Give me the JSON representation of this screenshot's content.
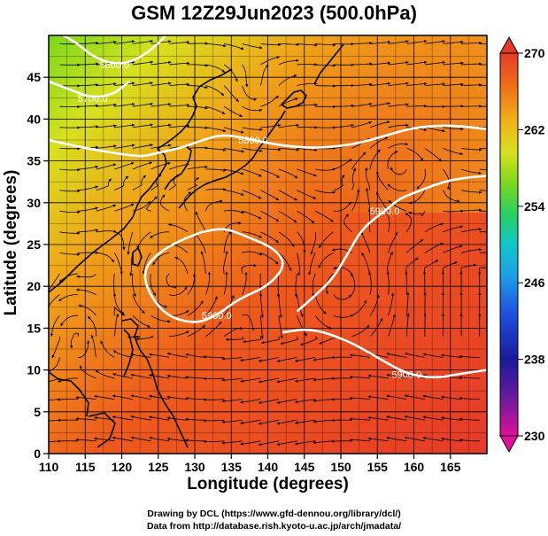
{
  "chart_data": {
    "type": "heatmap",
    "title": "GSM 12Z29Jun2023 (500.0hPa)",
    "xlabel": "Longitude (degrees)",
    "ylabel": "Latitude  (degrees)",
    "xlim": [
      110,
      170
    ],
    "ylim": [
      0,
      50
    ],
    "x_ticks": [
      "110",
      "115",
      "120",
      "125",
      "130",
      "135",
      "140",
      "145",
      "150",
      "155",
      "160",
      "165"
    ],
    "y_ticks": [
      "0",
      "5",
      "10",
      "15",
      "20",
      "25",
      "30",
      "35",
      "40",
      "45"
    ],
    "colorbar": {
      "min": 230,
      "max": 270,
      "tick_labels": [
        "270",
        "262",
        "254",
        "246",
        "238",
        "230"
      ],
      "colors": [
        "#e0109a",
        "#1a1a9c",
        "#1e3cd8",
        "#1e90e6",
        "#10c8c8",
        "#28d060",
        "#7ad81e",
        "#d8e01e",
        "#f0b418",
        "#f07018",
        "#e63a28"
      ]
    },
    "grid": true,
    "overlay": "streamlines",
    "contours": [
      {
        "label": "5800.0",
        "points": [
          [
            110,
            37.5
          ],
          [
            115,
            36.5
          ],
          [
            120,
            35.8
          ],
          [
            123,
            35.5
          ],
          [
            125,
            36.0
          ],
          [
            128,
            36.5
          ],
          [
            131,
            37.5
          ],
          [
            134,
            38.2
          ],
          [
            138,
            37.5
          ],
          [
            142,
            36.8
          ],
          [
            147,
            36.5
          ],
          [
            152,
            37.0
          ],
          [
            156,
            38.0
          ],
          [
            160,
            39.0
          ],
          [
            165,
            39.3
          ],
          [
            170,
            38.8
          ]
        ]
      },
      {
        "label": "5900.0",
        "points": [
          [
            131,
            26.5
          ],
          [
            128,
            25.5
          ],
          [
            125,
            24.0
          ],
          [
            123,
            22.0
          ],
          [
            123.5,
            19.5
          ],
          [
            126,
            16.5
          ],
          [
            130,
            15.5
          ],
          [
            133,
            16.5
          ],
          [
            136,
            18.5
          ],
          [
            140,
            20.0
          ],
          [
            142.5,
            22.5
          ],
          [
            141,
            24.5
          ],
          [
            137,
            26.0
          ],
          [
            134,
            27.0
          ],
          [
            131,
            26.5
          ]
        ]
      },
      {
        "label": "5900.0",
        "points": [
          [
            142,
            14.5
          ],
          [
            146,
            15.0
          ],
          [
            151,
            13.5
          ],
          [
            155,
            11.5
          ],
          [
            159,
            9.5
          ],
          [
            163,
            9.0
          ],
          [
            166,
            9.5
          ],
          [
            170,
            10.0
          ]
        ]
      },
      {
        "label": "5900.0",
        "points": [
          [
            144,
            17.0
          ],
          [
            146,
            18.5
          ],
          [
            149,
            21.0
          ],
          [
            151,
            24.0
          ],
          [
            153,
            27.0
          ],
          [
            156,
            29.0
          ],
          [
            158,
            30.5
          ],
          [
            161,
            31.5
          ],
          [
            164,
            32.5
          ],
          [
            167,
            33.0
          ],
          [
            170,
            33.2
          ]
        ]
      },
      {
        "label": "5700.0",
        "points": [
          [
            110,
            44.5
          ],
          [
            113,
            43.5
          ],
          [
            116,
            42.5
          ],
          [
            119,
            43.0
          ],
          [
            121,
            44.5
          ]
        ]
      },
      {
        "label": "5600.0",
        "points": [
          [
            112,
            50
          ],
          [
            114,
            49.0
          ],
          [
            116,
            47.5
          ],
          [
            119,
            46.5
          ],
          [
            122,
            47.0
          ],
          [
            125,
            49.0
          ],
          [
            126,
            50
          ]
        ]
      }
    ]
  }
}
